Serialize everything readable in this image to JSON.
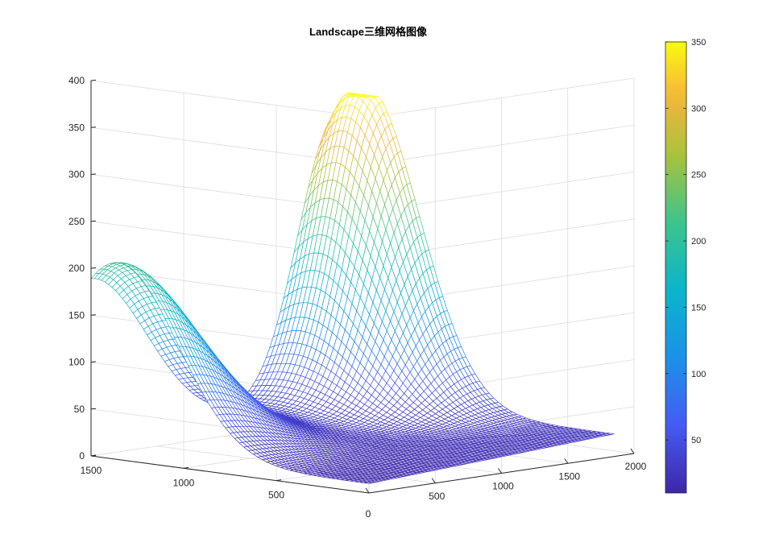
{
  "chart_data": {
    "type": "surface-mesh",
    "title": "Landscape三维网格图像",
    "x_ticks": [
      0,
      500,
      1000,
      1500,
      2000
    ],
    "y_ticks": [
      500,
      1000,
      1500
    ],
    "origin_label": "0",
    "z_ticks": [
      0,
      50,
      100,
      150,
      200,
      250,
      300,
      350,
      400
    ],
    "xlim": [
      0,
      2000
    ],
    "ylim": [
      0,
      1500
    ],
    "zlim": [
      0,
      400
    ],
    "grid": true,
    "colormap": "parula",
    "colorbar": {
      "ticks": [
        50,
        100,
        150,
        200,
        250,
        300,
        350
      ],
      "range": [
        10,
        350
      ],
      "placement": "right"
    },
    "surface": {
      "x_range": [
        0,
        1850
      ],
      "y_range": [
        0,
        1500
      ],
      "z_min": 10,
      "z_max": 350,
      "peaks": [
        {
          "x": 1850,
          "y": 1350,
          "z": 350
        },
        {
          "x": 0,
          "y": 1350,
          "z": 230
        }
      ],
      "corners": [
        {
          "x": 0,
          "y": 0,
          "z": 12
        },
        {
          "x": 1850,
          "y": 0,
          "z": 25
        },
        {
          "x": 0,
          "y": 1500,
          "z": 20
        },
        {
          "x": 1850,
          "y": 1500,
          "z": 300
        }
      ]
    }
  }
}
